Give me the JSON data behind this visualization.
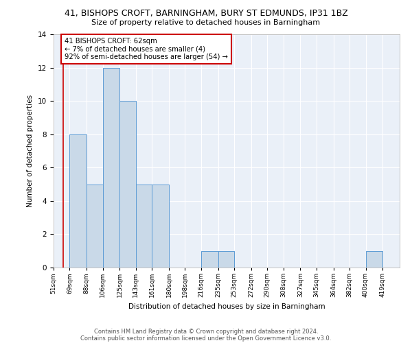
{
  "title1": "41, BISHOPS CROFT, BARNINGHAM, BURY ST EDMUNDS, IP31 1BZ",
  "title2": "Size of property relative to detached houses in Barningham",
  "xlabel": "Distribution of detached houses by size in Barningham",
  "ylabel": "Number of detached properties",
  "bins": [
    "51sqm",
    "69sqm",
    "88sqm",
    "106sqm",
    "125sqm",
    "143sqm",
    "161sqm",
    "180sqm",
    "198sqm",
    "216sqm",
    "235sqm",
    "253sqm",
    "272sqm",
    "290sqm",
    "308sqm",
    "327sqm",
    "345sqm",
    "364sqm",
    "382sqm",
    "400sqm",
    "419sqm"
  ],
  "counts": [
    0,
    8,
    5,
    12,
    10,
    5,
    5,
    0,
    0,
    1,
    1,
    0,
    0,
    0,
    0,
    0,
    0,
    0,
    0,
    1,
    0
  ],
  "bin_edges": [
    51,
    69,
    88,
    106,
    125,
    143,
    161,
    180,
    198,
    216,
    235,
    253,
    272,
    290,
    308,
    327,
    345,
    364,
    382,
    400,
    419
  ],
  "property_size": 62,
  "bar_color": "#c9d9e8",
  "bar_edge_color": "#5b9bd5",
  "vertical_line_color": "#cc0000",
  "annotation_text": "41 BISHOPS CROFT: 62sqm\n← 7% of detached houses are smaller (4)\n92% of semi-detached houses are larger (54) →",
  "annotation_box_color": "#ffffff",
  "annotation_box_edge": "#cc0000",
  "ylim": [
    0,
    14
  ],
  "yticks": [
    0,
    2,
    4,
    6,
    8,
    10,
    12,
    14
  ],
  "footer1": "Contains HM Land Registry data © Crown copyright and database right 2024.",
  "footer2": "Contains public sector information licensed under the Open Government Licence v3.0.",
  "plot_bg_color": "#eaf0f8"
}
